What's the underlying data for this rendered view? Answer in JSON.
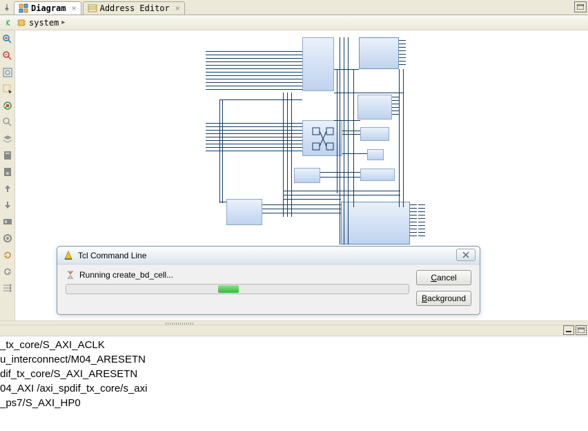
{
  "tabs": [
    {
      "label": "Diagram",
      "active": true
    },
    {
      "label": "Address Editor",
      "active": false
    }
  ],
  "breadcrumb": {
    "name": "system",
    "sep": "▸"
  },
  "dialog": {
    "title": "Tcl Command Line",
    "message": "Running create_bd_cell...",
    "cancel_label": "Cancel",
    "cancel_accel": "C",
    "background_label": "Background",
    "background_accel": "B"
  },
  "console_lines": [
    "_tx_core/S_AXI_ACLK",
    "u_interconnect/M04_ARESETN",
    "dif_tx_core/S_AXI_ARESETN",
    "04_AXI /axi_spdif_tx_core/s_axi",
    "_ps7/S_AXI_HP0"
  ],
  "colors": {
    "wire": "#11395f",
    "block_border": "#8ea8c8",
    "block_fill_top": "#eaf1fb",
    "block_fill_bot": "#bfd3ef"
  }
}
